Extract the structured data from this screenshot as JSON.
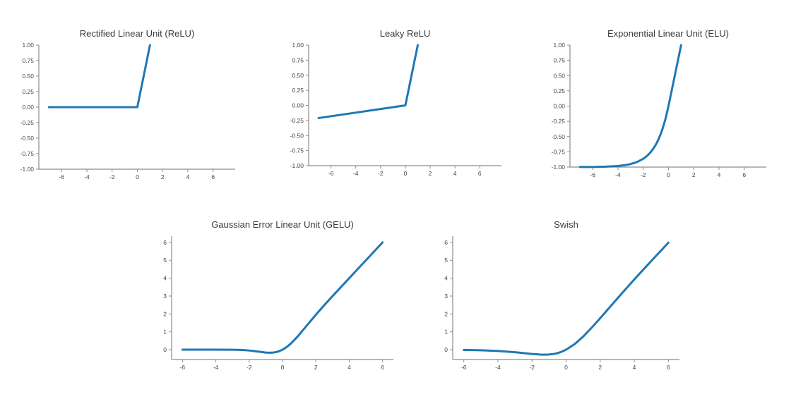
{
  "figure": {
    "description": "Activation function comparison figure with five line charts",
    "line_color": "#1f77b4",
    "spine_color": "#8c8c8c",
    "tick_label_color": "#444444",
    "title_color": "#3a3a3a",
    "background": "#ffffff"
  },
  "chart_data": [
    {
      "id": "relu",
      "type": "line",
      "title": "Rectified Linear Unit (ReLU)",
      "xlabel": "",
      "ylabel": "",
      "grid": false,
      "legend": "none",
      "line_color": "#1f77b4",
      "xlim": [
        -7.8,
        7.75
      ],
      "ylim": [
        -1.0,
        1.0
      ],
      "xticks": {
        "values": [
          -6,
          -4,
          -2,
          0,
          2,
          4,
          6
        ],
        "labels": [
          "-6",
          "-4",
          "-2",
          "0",
          "2",
          "4",
          "6"
        ]
      },
      "yticks": {
        "values": [
          1.0,
          0.75,
          0.5,
          0.25,
          0.0,
          -0.25,
          -0.5,
          -0.75,
          -1.0
        ],
        "labels": [
          "1.00",
          "0.75",
          "0.50",
          "0.25",
          "0.00",
          "-0.25",
          "-0.50",
          "-0.75",
          "-1.00"
        ]
      },
      "x": [
        -7,
        0,
        1
      ],
      "y": [
        0,
        0,
        1
      ]
    },
    {
      "id": "leaky",
      "type": "line",
      "title": "Leaky ReLU",
      "xlabel": "",
      "ylabel": "",
      "grid": false,
      "legend": "none",
      "line_color": "#1f77b4",
      "xlim": [
        -7.8,
        7.75
      ],
      "ylim": [
        -1.0,
        1.0
      ],
      "xticks": {
        "values": [
          -6,
          -4,
          -2,
          0,
          2,
          4,
          6
        ],
        "labels": [
          "-6",
          "-4",
          "-2",
          "0",
          "2",
          "4",
          "6"
        ]
      },
      "yticks": {
        "values": [
          1.0,
          0.75,
          0.5,
          0.25,
          0.0,
          -0.25,
          -0.5,
          -0.75,
          -1.0
        ],
        "labels": [
          "1.00",
          "0.75",
          "0.50",
          "0.25",
          "0.00",
          "-0.25",
          "-0.50",
          "-0.75",
          "-1.00"
        ]
      },
      "x": [
        -7,
        0,
        1
      ],
      "y": [
        -0.21,
        0,
        1
      ]
    },
    {
      "id": "elu",
      "type": "line",
      "title": "Exponential Linear Unit (ELU)",
      "xlabel": "",
      "ylabel": "",
      "grid": false,
      "legend": "none",
      "line_color": "#1f77b4",
      "xlim": [
        -7.8,
        7.75
      ],
      "ylim": [
        -1.0,
        1.0
      ],
      "xticks": {
        "values": [
          -6,
          -4,
          -2,
          0,
          2,
          4,
          6
        ],
        "labels": [
          "-6",
          "-4",
          "-2",
          "0",
          "2",
          "4",
          "6"
        ]
      },
      "yticks": {
        "values": [
          1.0,
          0.75,
          0.5,
          0.25,
          0.0,
          -0.25,
          -0.5,
          -0.75,
          -1.0
        ],
        "labels": [
          "1.00",
          "0.75",
          "0.50",
          "0.25",
          "0.00",
          "-0.25",
          "-0.50",
          "-0.75",
          "-1.00"
        ]
      },
      "x": [
        -7,
        -6,
        -5,
        -4,
        -3.5,
        -3,
        -2.5,
        -2,
        -1.75,
        -1.5,
        -1.25,
        -1,
        -0.75,
        -0.5,
        -0.25,
        0,
        0.5,
        1
      ],
      "y": [
        -0.999,
        -0.998,
        -0.993,
        -0.982,
        -0.97,
        -0.95,
        -0.918,
        -0.865,
        -0.826,
        -0.777,
        -0.713,
        -0.632,
        -0.528,
        -0.393,
        -0.221,
        0,
        0.5,
        1
      ]
    },
    {
      "id": "gelu",
      "type": "line",
      "title": "Gaussian Error Linear Unit (GELU)",
      "xlabel": "",
      "ylabel": "",
      "grid": false,
      "legend": "none",
      "line_color": "#1f77b4",
      "xlim": [
        -6.65,
        6.65
      ],
      "ylim": [
        -0.55,
        6.35
      ],
      "xticks": {
        "values": [
          -6,
          -4,
          -2,
          0,
          2,
          4,
          6
        ],
        "labels": [
          "-6",
          "-4",
          "-2",
          "0",
          "2",
          "4",
          "6"
        ]
      },
      "yticks": {
        "values": [
          6,
          5,
          4,
          3,
          2,
          1,
          0
        ],
        "labels": [
          "6",
          "5",
          "4",
          "3",
          "2",
          "1",
          "0"
        ]
      },
      "x": [
        -6,
        -5,
        -4,
        -3,
        -2.5,
        -2,
        -1.75,
        -1.5,
        -1.25,
        -1,
        -0.75,
        -0.5,
        -0.25,
        0,
        0.25,
        0.5,
        0.75,
        1,
        1.5,
        2,
        2.5,
        3,
        3.5,
        4,
        5,
        6
      ],
      "y": [
        0,
        0,
        0,
        -0.004,
        -0.015,
        -0.045,
        -0.07,
        -0.1,
        -0.132,
        -0.159,
        -0.17,
        -0.154,
        -0.101,
        0,
        0.149,
        0.345,
        0.58,
        0.841,
        1.4,
        1.954,
        2.484,
        2.996,
        3.499,
        4.0,
        5.0,
        6.0
      ]
    },
    {
      "id": "swish",
      "type": "line",
      "title": "Swish",
      "xlabel": "",
      "ylabel": "",
      "grid": false,
      "legend": "none",
      "line_color": "#1f77b4",
      "xlim": [
        -6.65,
        6.65
      ],
      "ylim": [
        -0.55,
        6.35
      ],
      "xticks": {
        "values": [
          -6,
          -4,
          -2,
          0,
          2,
          4,
          6
        ],
        "labels": [
          "-6",
          "-4",
          "-2",
          "0",
          "2",
          "4",
          "6"
        ]
      },
      "yticks": {
        "values": [
          6,
          5,
          4,
          3,
          2,
          1,
          0
        ],
        "labels": [
          "6",
          "5",
          "4",
          "3",
          "2",
          "1",
          "0"
        ]
      },
      "x": [
        -6,
        -5,
        -4,
        -3,
        -2.5,
        -2,
        -1.5,
        -1.25,
        -1,
        -0.75,
        -0.5,
        -0.25,
        0,
        0.5,
        1,
        1.5,
        2,
        2.5,
        3,
        3.5,
        4,
        5,
        6
      ],
      "y": [
        -0.015,
        -0.033,
        -0.072,
        -0.142,
        -0.188,
        -0.238,
        -0.273,
        -0.278,
        -0.269,
        -0.242,
        -0.193,
        -0.109,
        0,
        0.311,
        0.731,
        1.231,
        1.762,
        2.308,
        2.857,
        3.394,
        3.928,
        4.967,
        5.985
      ]
    }
  ]
}
